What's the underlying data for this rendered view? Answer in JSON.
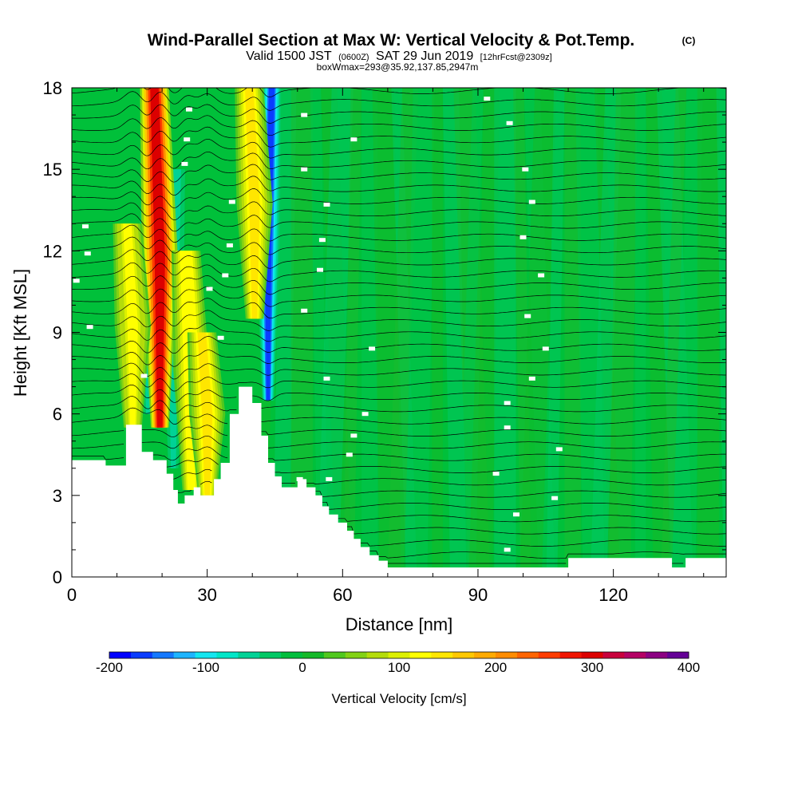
{
  "title": {
    "main": "Wind-Parallel Section at Max W: Vertical Velocity & Pot.Temp.",
    "copyright": "(C)",
    "line2_pre": "Valid 1500 JST",
    "line2_small1": "(0600Z)",
    "line2_mid": "SAT 29 Jun 2019",
    "line2_small2": "[12hrFcst@2309z]",
    "line3": "boxWmax=293@35.92,137.85,2947m"
  },
  "chart_data": {
    "type": "heatmap",
    "xlabel": "Distance [nm]",
    "ylabel": "Height [Kft MSL]",
    "xlim": [
      0,
      145
    ],
    "ylim": [
      0,
      18
    ],
    "x_ticks": [
      0,
      30,
      60,
      90,
      120
    ],
    "x_tick_labels": [
      "0",
      "30",
      "60",
      "90",
      "120"
    ],
    "y_ticks": [
      0,
      3,
      6,
      9,
      12,
      15,
      18
    ],
    "y_tick_labels": [
      "0",
      "3",
      "6",
      "9",
      "12",
      "15",
      "18"
    ],
    "grid": false,
    "terrain_kft": [
      [
        0,
        4.3
      ],
      [
        7.5,
        4.3
      ],
      [
        7.5,
        4.1
      ],
      [
        12,
        4.1
      ],
      [
        12,
        5.6
      ],
      [
        15.5,
        5.6
      ],
      [
        15.5,
        4.6
      ],
      [
        18,
        4.6
      ],
      [
        18,
        4.3
      ],
      [
        21,
        4.3
      ],
      [
        21,
        3.8
      ],
      [
        22.5,
        3.8
      ],
      [
        22.5,
        3.2
      ],
      [
        23.5,
        3.2
      ],
      [
        23.5,
        2.7
      ],
      [
        25,
        2.7
      ],
      [
        25,
        3.0
      ],
      [
        27,
        3.0
      ],
      [
        27,
        3.3
      ],
      [
        28.5,
        3.3
      ],
      [
        28.5,
        3.0
      ],
      [
        31.5,
        3.0
      ],
      [
        31.5,
        3.6
      ],
      [
        33,
        3.6
      ],
      [
        33,
        4.2
      ],
      [
        35,
        4.2
      ],
      [
        35,
        6.0
      ],
      [
        37,
        6.0
      ],
      [
        37,
        7.0
      ],
      [
        40,
        7.0
      ],
      [
        40,
        6.4
      ],
      [
        42,
        6.4
      ],
      [
        42,
        5.2
      ],
      [
        43.5,
        5.2
      ],
      [
        43.5,
        4.2
      ],
      [
        45,
        4.2
      ],
      [
        45,
        3.7
      ],
      [
        46.5,
        3.7
      ],
      [
        46.5,
        3.3
      ],
      [
        50,
        3.3
      ],
      [
        50,
        3.6
      ],
      [
        52,
        3.6
      ],
      [
        52,
        3.3
      ],
      [
        54,
        3.3
      ],
      [
        54,
        3.0
      ],
      [
        55.5,
        3.0
      ],
      [
        55.5,
        2.6
      ],
      [
        57,
        2.6
      ],
      [
        57,
        2.3
      ],
      [
        59,
        2.3
      ],
      [
        59,
        2.0
      ],
      [
        61,
        2.0
      ],
      [
        61,
        1.7
      ],
      [
        62.5,
        1.7
      ],
      [
        62.5,
        1.4
      ],
      [
        64,
        1.4
      ],
      [
        64,
        1.1
      ],
      [
        66,
        1.1
      ],
      [
        66,
        0.8
      ],
      [
        68,
        0.8
      ],
      [
        68,
        0.6
      ],
      [
        70,
        0.6
      ],
      [
        70,
        0.35
      ],
      [
        110,
        0.35
      ],
      [
        110,
        0.7
      ],
      [
        133,
        0.7
      ],
      [
        133,
        0.35
      ],
      [
        136,
        0.35
      ],
      [
        136,
        0.7
      ],
      [
        145,
        0.7
      ]
    ],
    "updrafts": [
      {
        "x": 19.5,
        "peak_cm_s": 293,
        "top_kft": 18,
        "bottom_kft": 5.5
      },
      {
        "x": 13.5,
        "peak_cm_s": 120,
        "top_kft": 13,
        "bottom_kft": 5.5
      },
      {
        "x": 26.5,
        "peak_cm_s": 130,
        "top_kft": 12,
        "bottom_kft": 3.2
      },
      {
        "x": 30,
        "peak_cm_s": 140,
        "top_kft": 9,
        "bottom_kft": 3.0
      },
      {
        "x": 40.5,
        "peak_cm_s": 150,
        "top_kft": 18,
        "bottom_kft": 9.5
      }
    ],
    "downdrafts": [
      {
        "x": 27.5,
        "min_cm_s": -110,
        "top_kft": 9,
        "bottom_kft": 3.3
      },
      {
        "x": 43.5,
        "min_cm_s": -160,
        "top_kft": 18,
        "bottom_kft": 6.5
      },
      {
        "x": 17,
        "min_cm_s": -60,
        "top_kft": 17,
        "bottom_kft": 6
      },
      {
        "x": 22.5,
        "min_cm_s": -60,
        "top_kft": 15,
        "bottom_kft": 4
      }
    ],
    "theta_label_positions": [
      {
        "x": 26,
        "y": 17.2
      },
      {
        "x": 25.5,
        "y": 16.1
      },
      {
        "x": 25,
        "y": 15.2
      },
      {
        "x": 3,
        "y": 12.9
      },
      {
        "x": 3.5,
        "y": 11.9
      },
      {
        "x": 1,
        "y": 10.9
      },
      {
        "x": 4,
        "y": 9.2
      },
      {
        "x": 16,
        "y": 7.4
      },
      {
        "x": 35.5,
        "y": 13.8
      },
      {
        "x": 35,
        "y": 12.2
      },
      {
        "x": 34,
        "y": 11.1
      },
      {
        "x": 30.5,
        "y": 10.6
      },
      {
        "x": 33,
        "y": 8.8
      },
      {
        "x": 51.5,
        "y": 17.0
      },
      {
        "x": 51.5,
        "y": 15.0
      },
      {
        "x": 56.5,
        "y": 13.7
      },
      {
        "x": 55.5,
        "y": 12.4
      },
      {
        "x": 55,
        "y": 11.3
      },
      {
        "x": 51.5,
        "y": 9.8
      },
      {
        "x": 62.5,
        "y": 16.1
      },
      {
        "x": 66.5,
        "y": 8.4
      },
      {
        "x": 56.5,
        "y": 7.3
      },
      {
        "x": 65,
        "y": 6.0
      },
      {
        "x": 62.5,
        "y": 5.2
      },
      {
        "x": 61.5,
        "y": 4.5
      },
      {
        "x": 57,
        "y": 3.6
      },
      {
        "x": 50.5,
        "y": 3.6
      },
      {
        "x": 92,
        "y": 17.6
      },
      {
        "x": 97,
        "y": 16.7
      },
      {
        "x": 100.5,
        "y": 15.0
      },
      {
        "x": 102,
        "y": 13.8
      },
      {
        "x": 100,
        "y": 12.5
      },
      {
        "x": 104,
        "y": 11.1
      },
      {
        "x": 101,
        "y": 9.6
      },
      {
        "x": 105,
        "y": 8.4
      },
      {
        "x": 102,
        "y": 7.3
      },
      {
        "x": 96.5,
        "y": 6.4
      },
      {
        "x": 96.5,
        "y": 5.5
      },
      {
        "x": 108,
        "y": 4.7
      },
      {
        "x": 94,
        "y": 3.8
      },
      {
        "x": 107,
        "y": 2.9
      },
      {
        "x": 98.5,
        "y": 2.3
      },
      {
        "x": 96.5,
        "y": 1.0
      }
    ]
  },
  "colorbar": {
    "title": "Vertical Velocity [cm/s]",
    "labels": [
      "-200",
      "-100",
      "0",
      "100",
      "200",
      "300",
      "400"
    ],
    "min": -200,
    "max": 400,
    "colors": [
      "#0000ff",
      "#0a3cff",
      "#1478ff",
      "#1eb4ff",
      "#14e6f0",
      "#00e6c8",
      "#00d296",
      "#00c864",
      "#00be3c",
      "#14b928",
      "#50c81e",
      "#82d214",
      "#b4dc0a",
      "#dcf000",
      "#ffff00",
      "#ffe600",
      "#ffc800",
      "#ffaa00",
      "#ff8c00",
      "#ff6400",
      "#ff3c00",
      "#f01400",
      "#dc0000",
      "#c8003c",
      "#b40064",
      "#8c0082",
      "#640096"
    ]
  }
}
